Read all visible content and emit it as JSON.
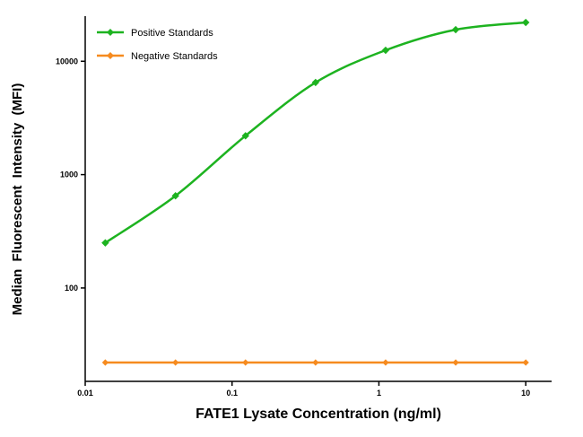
{
  "chart_data": {
    "type": "line",
    "title": "",
    "xlabel": "FATE1 Lysate Concentration (ng/ml)",
    "ylabel": "Median Fluorescent Intensity (MFI)",
    "x_scale": "log",
    "y_scale": "log",
    "xlim": [
      0.01,
      15
    ],
    "ylim": [
      15,
      25000
    ],
    "x_ticks": [
      0.01,
      0.1,
      1,
      10
    ],
    "x_tick_labels": [
      "0.01",
      "0.1",
      "1",
      "10"
    ],
    "y_ticks": [
      100,
      1000,
      10000
    ],
    "y_tick_labels": [
      "100",
      "1000",
      "10000"
    ],
    "grid": false,
    "legend_position": "top-left",
    "x": [
      0.0137,
      0.0412,
      0.1235,
      0.3704,
      1.111,
      3.333,
      10
    ],
    "series": [
      {
        "name": "Positive Standards",
        "color": "#1db320",
        "marker": "diamond",
        "values": [
          250,
          650,
          2200,
          6500,
          12500,
          19000,
          22000
        ]
      },
      {
        "name": "Negative Standards",
        "color": "#f68b1f",
        "marker": "diamond",
        "values": [
          22,
          22,
          22,
          22,
          22,
          22,
          22
        ]
      }
    ],
    "axis_color": "#000000"
  }
}
